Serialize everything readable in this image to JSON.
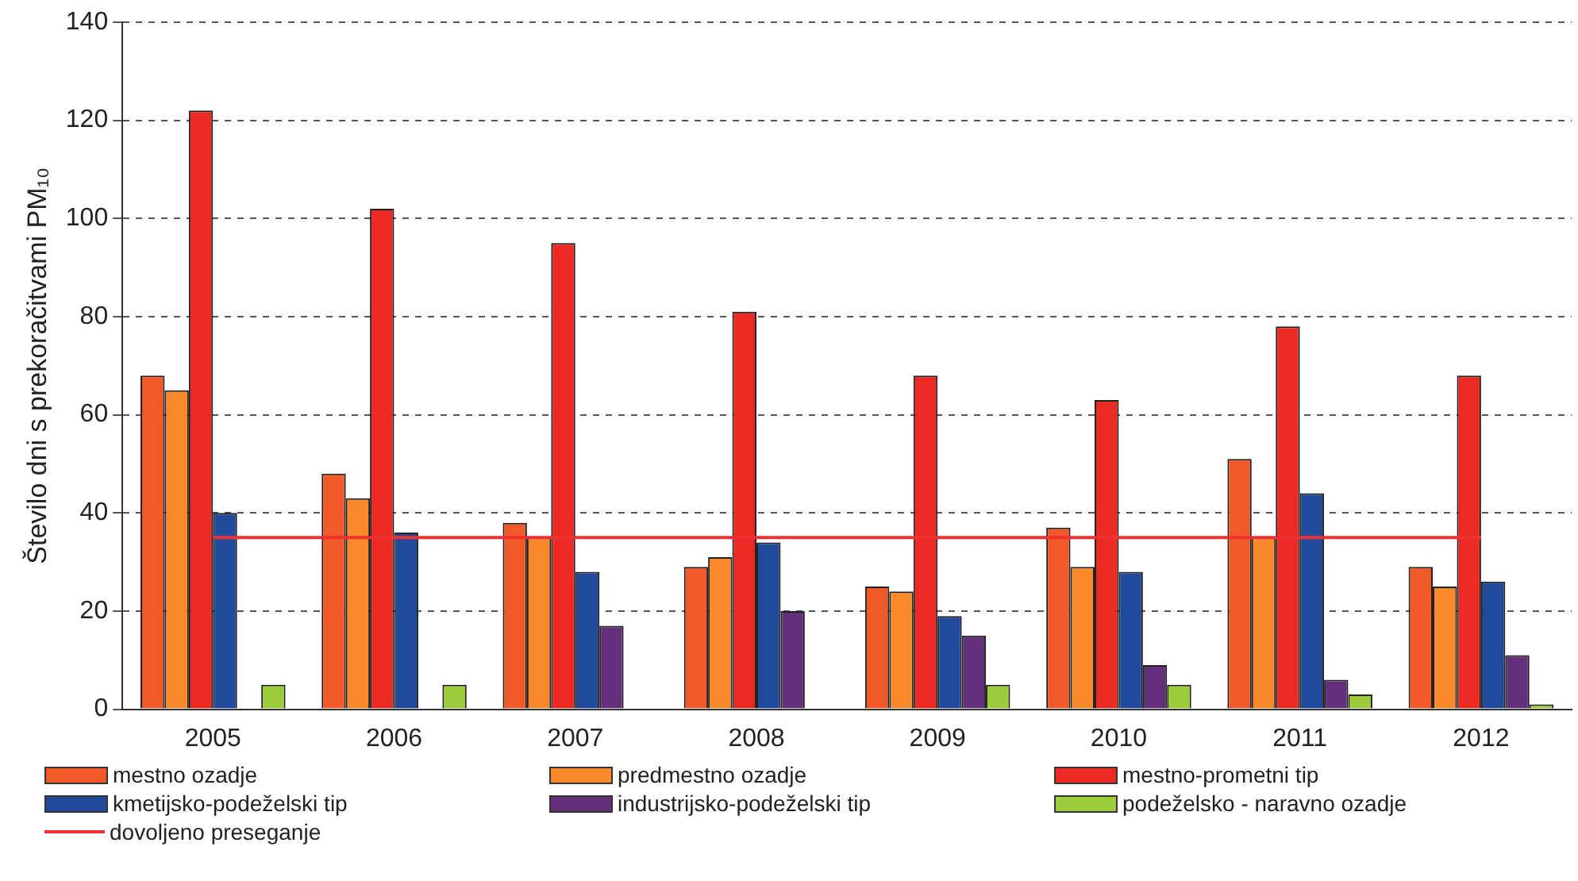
{
  "chart_data": {
    "type": "bar",
    "ylabel": "Število dni s prekoračitvami PM₁₀",
    "categories": [
      "2005",
      "2006",
      "2007",
      "2008",
      "2009",
      "2010",
      "2011",
      "2012"
    ],
    "series": [
      {
        "name": "mestno ozadje",
        "color": "#f05a28",
        "values": [
          68,
          48,
          38,
          29,
          25,
          37,
          51,
          29
        ]
      },
      {
        "name": "predmestno ozadje",
        "color": "#f7892a",
        "values": [
          65,
          43,
          35,
          31,
          24,
          29,
          35,
          25
        ]
      },
      {
        "name": "mestno-prometni tip",
        "color": "#ec2a24",
        "values": [
          122,
          102,
          95,
          81,
          68,
          63,
          78,
          68
        ]
      },
      {
        "name": "kmetijsko-podeželski tip",
        "color": "#214a9c",
        "values": [
          40,
          36,
          28,
          34,
          19,
          28,
          44,
          26
        ]
      },
      {
        "name": "industrijsko-podeželski tip",
        "color": "#64307c",
        "values": [
          null,
          null,
          17,
          20,
          15,
          9,
          6,
          11
        ]
      },
      {
        "name": "podeželsko - naravno ozadje",
        "color": "#9ccc3c",
        "values": [
          5,
          5,
          null,
          null,
          5,
          5,
          3,
          1
        ]
      }
    ],
    "ref_lines": [
      {
        "axis": "y",
        "value": 35,
        "label": "dovoljeno preseganje",
        "color": "#f03030"
      }
    ],
    "ylim": [
      0,
      140
    ],
    "yticks": [
      0,
      20,
      40,
      60,
      80,
      100,
      120,
      140
    ],
    "grid": "y",
    "legend": "bottom"
  }
}
